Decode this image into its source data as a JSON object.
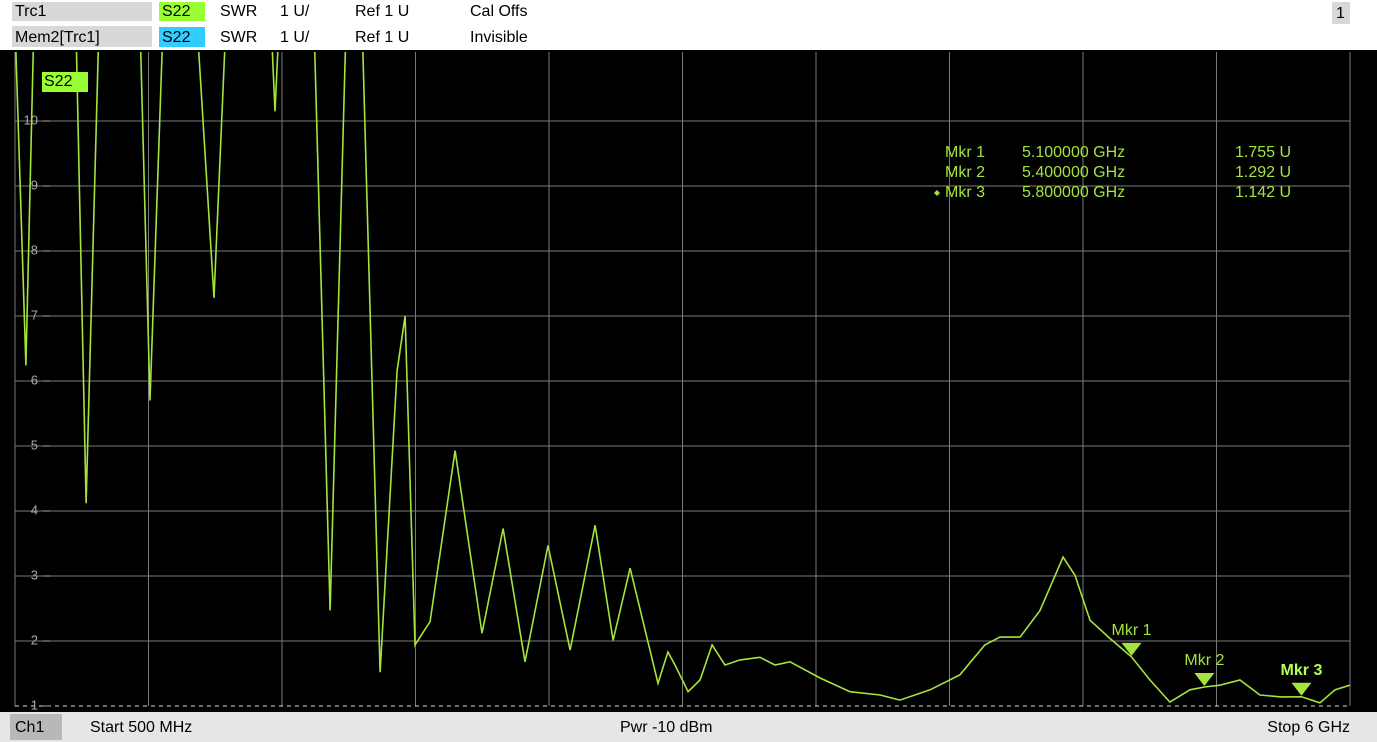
{
  "header": {
    "rows": [
      {
        "trace": "Trc1",
        "param": "S22",
        "format": "SWR",
        "scale": "1 U/",
        "ref": "Ref 1 U",
        "status": "Cal Offs"
      },
      {
        "trace": "Mem2[Trc1]",
        "param": "S22",
        "format": "SWR",
        "scale": "1 U/",
        "ref": "Ref 1 U",
        "status": "Invisible"
      }
    ],
    "window": "1"
  },
  "footer": {
    "channel": "Ch1",
    "start": "Start 500 MHz",
    "power": "Pwr -10 dBm",
    "stop": "Stop 6 GHz"
  },
  "chart_data": {
    "type": "line",
    "x": [
      0.5,
      0.545,
      0.578,
      0.751,
      0.793,
      0.846,
      1.015,
      1.056,
      1.11,
      1.25,
      1.32,
      1.369,
      1.555,
      1.571,
      1.588,
      1.732,
      1.798,
      1.864,
      1.93,
      2.004,
      2.074,
      2.107,
      2.148,
      2.21,
      2.313,
      2.424,
      2.511,
      2.601,
      2.696,
      2.787,
      2.89,
      2.964,
      3.034,
      3.149,
      3.19,
      3.219,
      3.273,
      3.322,
      3.372,
      3.425,
      3.487,
      3.569,
      3.631,
      3.693,
      3.817,
      3.94,
      4.064,
      4.146,
      4.27,
      4.393,
      4.496,
      4.558,
      4.641,
      4.723,
      4.818,
      4.867,
      4.929,
      5.011,
      5.1,
      5.176,
      5.258,
      5.341,
      5.4,
      5.464,
      5.547,
      5.629,
      5.716,
      5.8,
      5.876,
      5.938,
      6.0
    ],
    "series": [
      {
        "name": "S22",
        "color": "#a4e43c",
        "values": [
          11.5,
          6.24,
          11.5,
          11.5,
          4.12,
          11.5,
          11.5,
          5.7,
          11.5,
          11.5,
          7.28,
          11.5,
          11.5,
          10.15,
          11.5,
          11.5,
          2.47,
          11.5,
          11.5,
          1.52,
          6.16,
          7.0,
          1.94,
          2.3,
          4.93,
          2.12,
          3.73,
          1.68,
          3.47,
          1.86,
          3.78,
          2.01,
          3.12,
          1.35,
          1.83,
          1.63,
          1.22,
          1.4,
          1.94,
          1.63,
          1.71,
          1.75,
          1.63,
          1.68,
          1.43,
          1.22,
          1.17,
          1.09,
          1.25,
          1.48,
          1.94,
          2.06,
          2.06,
          2.47,
          3.29,
          3.01,
          2.32,
          2.04,
          1.755,
          1.4,
          1.06,
          1.25,
          1.292,
          1.32,
          1.4,
          1.17,
          1.14,
          1.142,
          1.05,
          1.25,
          1.32
        ]
      }
    ],
    "xlim": [
      0.5,
      6.0
    ],
    "xticks": [
      0.5,
      1.05,
      1.6,
      2.15,
      2.7,
      3.25,
      3.8,
      4.35,
      4.9,
      5.45,
      6.0
    ],
    "ylim": [
      1,
      11
    ],
    "yticks": [
      1,
      2,
      3,
      4,
      5,
      6,
      7,
      8,
      9,
      10
    ],
    "grid": true,
    "markers": [
      {
        "name": "Mkr 1",
        "x": 5.1,
        "x_label": "5.100000 GHz",
        "value": 1.755,
        "value_label": "1.755 U"
      },
      {
        "name": "Mkr 2",
        "x": 5.4,
        "x_label": "5.400000 GHz",
        "value": 1.292,
        "value_label": "1.292 U"
      },
      {
        "name": "Mkr 3",
        "x": 5.8,
        "x_label": "5.800000 GHz",
        "value": 1.142,
        "value_label": "1.142 U"
      }
    ],
    "active_marker": 2
  }
}
